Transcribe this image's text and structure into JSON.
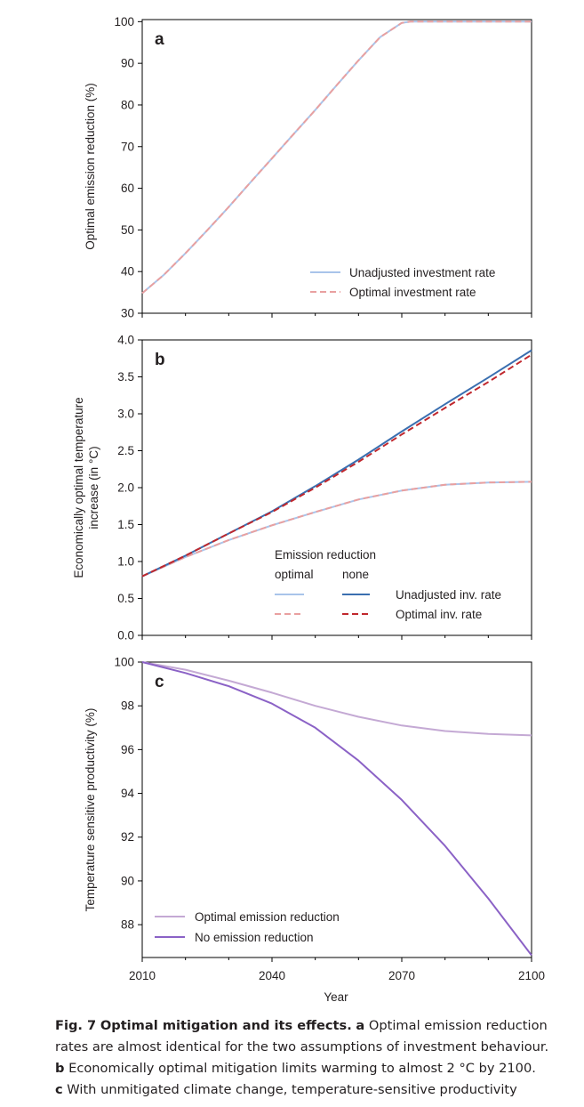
{
  "chart_data": [
    {
      "panel": "a",
      "type": "line",
      "xlim": [
        2010,
        2100
      ],
      "ylim": [
        30,
        100.5
      ],
      "ylabel": "Optimal emission reduction (%)",
      "y_ticks": [
        30,
        40,
        50,
        60,
        70,
        80,
        90,
        100
      ],
      "legend_position": "bottom-right",
      "series": [
        {
          "name": "Unadjusted investment rate",
          "color": "#a9c4ea",
          "dash": "solid",
          "x": [
            2010,
            2015,
            2020,
            2025,
            2030,
            2035,
            2040,
            2045,
            2050,
            2055,
            2060,
            2065,
            2070,
            2072,
            2075,
            2080,
            2085,
            2090,
            2095,
            2100
          ],
          "y": [
            34.8,
            39.2,
            44.4,
            49.9,
            55.5,
            61.4,
            67.2,
            73.0,
            78.8,
            84.8,
            90.7,
            96.3,
            99.7,
            100,
            100,
            100,
            100,
            100,
            100,
            100
          ]
        },
        {
          "name": "Optimal investment rate",
          "color": "#e9a0a0",
          "dash": "dashed",
          "x": [
            2010,
            2015,
            2020,
            2025,
            2030,
            2035,
            2040,
            2045,
            2050,
            2055,
            2060,
            2065,
            2070,
            2072,
            2075,
            2080,
            2085,
            2090,
            2095,
            2100
          ],
          "y": [
            34.8,
            39.2,
            44.4,
            49.9,
            55.5,
            61.4,
            67.2,
            73.0,
            78.8,
            84.8,
            90.7,
            96.3,
            99.7,
            100,
            100,
            100,
            100,
            100,
            100,
            100
          ]
        }
      ]
    },
    {
      "panel": "b",
      "type": "line",
      "xlim": [
        2010,
        2100
      ],
      "ylim": [
        0,
        4.0
      ],
      "ylabel": "Economically optimal temperature increase (in °C)",
      "ylabel_lines": [
        "Economically optimal temperature",
        "increase (in °C)"
      ],
      "y_ticks": [
        "0.0",
        "0.5",
        "1.0",
        "1.5",
        "2.0",
        "2.5",
        "3.0",
        "3.5",
        "4.0"
      ],
      "legend": {
        "title": "Emission reduction",
        "columns": [
          "optimal",
          "none"
        ],
        "rows": [
          "Unadjusted inv. rate",
          "Optimal inv. rate"
        ]
      },
      "series": [
        {
          "name": "Unadjusted inv. rate",
          "group": "optimal",
          "color": "#a9c4ea",
          "dash": "solid",
          "x": [
            2010,
            2020,
            2030,
            2040,
            2050,
            2060,
            2070,
            2080,
            2090,
            2100
          ],
          "y": [
            0.8,
            1.06,
            1.29,
            1.49,
            1.67,
            1.84,
            1.96,
            2.04,
            2.07,
            2.08
          ]
        },
        {
          "name": "Optimal inv. rate",
          "group": "optimal",
          "color": "#e9a0a0",
          "dash": "dashed",
          "x": [
            2010,
            2020,
            2030,
            2040,
            2050,
            2060,
            2070,
            2080,
            2090,
            2100
          ],
          "y": [
            0.8,
            1.06,
            1.29,
            1.49,
            1.67,
            1.84,
            1.96,
            2.04,
            2.07,
            2.08
          ]
        },
        {
          "name": "Unadjusted inv. rate",
          "group": "none",
          "color": "#3a6fb0",
          "dash": "solid",
          "x": [
            2010,
            2020,
            2030,
            2040,
            2050,
            2060,
            2070,
            2080,
            2090,
            2100
          ],
          "y": [
            0.8,
            1.08,
            1.38,
            1.68,
            2.02,
            2.38,
            2.76,
            3.13,
            3.49,
            3.86
          ]
        },
        {
          "name": "Optimal inv. rate",
          "group": "none",
          "color": "#c0272d",
          "dash": "dashed",
          "x": [
            2010,
            2020,
            2030,
            2040,
            2050,
            2060,
            2070,
            2080,
            2090,
            2100
          ],
          "y": [
            0.8,
            1.08,
            1.38,
            1.67,
            2.0,
            2.35,
            2.72,
            3.08,
            3.43,
            3.8
          ]
        }
      ]
    },
    {
      "panel": "c",
      "type": "line",
      "xlim": [
        2010,
        2100
      ],
      "ylim": [
        86.5,
        100
      ],
      "xlabel": "Year",
      "x_ticks": [
        2010,
        2040,
        2070,
        2100
      ],
      "ylabel": "Temperature sensitive productivity (%)",
      "y_ticks": [
        88,
        90,
        92,
        94,
        96,
        98,
        100
      ],
      "legend_position": "bottom-left",
      "series": [
        {
          "name": "Optimal emission reduction",
          "color": "#c4a9d4",
          "dash": "solid",
          "x": [
            2010,
            2020,
            2030,
            2040,
            2050,
            2060,
            2070,
            2080,
            2090,
            2100
          ],
          "y": [
            100,
            99.65,
            99.15,
            98.6,
            98.0,
            97.5,
            97.1,
            96.85,
            96.72,
            96.65
          ]
        },
        {
          "name": "No emission reduction",
          "color": "#8b62c6",
          "dash": "solid",
          "x": [
            2010,
            2020,
            2030,
            2040,
            2050,
            2060,
            2070,
            2080,
            2090,
            2100
          ],
          "y": [
            100,
            99.5,
            98.9,
            98.1,
            97.0,
            95.5,
            93.7,
            91.6,
            89.2,
            86.6
          ]
        }
      ]
    }
  ],
  "caption": {
    "label": "Fig. 7",
    "title": "Optimal mitigation and its effects.",
    "line1_rest": "Optimal emission reduction",
    "line2": "rates are almost identical for the two assumptions of investment behaviour.",
    "line3_label": "b",
    "line3_rest": "Economically optimal mitigation limits warming to almost 2 °C by 2100.",
    "line4_label": "c",
    "line4_rest": "With unmitigated climate change, temperature-sensitive productivity"
  }
}
